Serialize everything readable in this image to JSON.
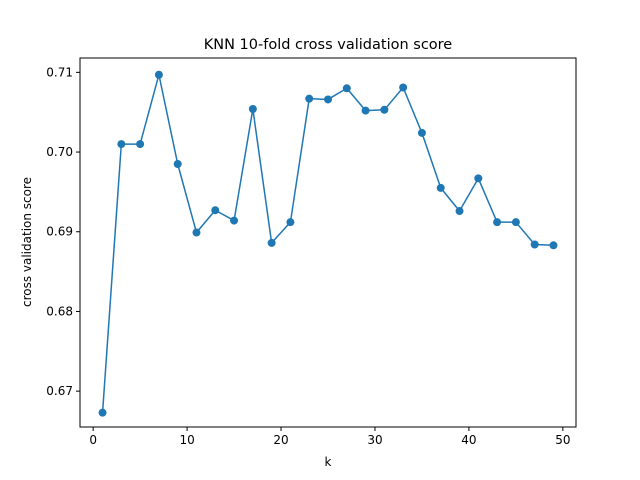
{
  "chart_data": {
    "type": "line",
    "title": "KNN 10-fold cross validation score",
    "xlabel": "k",
    "ylabel": "cross validation score",
    "xlim": [
      -1.4,
      51.4
    ],
    "ylim": [
      0.6655,
      0.7118
    ],
    "xticks": [
      0,
      10,
      20,
      30,
      40,
      50
    ],
    "yticks": [
      0.67,
      0.68,
      0.69,
      0.7,
      0.71
    ],
    "xtick_labels": [
      "0",
      "10",
      "20",
      "30",
      "40",
      "50"
    ],
    "ytick_labels": [
      "0.67",
      "0.68",
      "0.69",
      "0.70",
      "0.71"
    ],
    "grid": false,
    "legend": null,
    "series": [
      {
        "color": "#1f77b4",
        "marker": "circle",
        "x": [
          1,
          3,
          5,
          7,
          9,
          11,
          13,
          15,
          17,
          19,
          21,
          23,
          25,
          27,
          29,
          31,
          33,
          35,
          37,
          39,
          41,
          43,
          45,
          47,
          49
        ],
        "y": [
          0.6673,
          0.701,
          0.701,
          0.7097,
          0.6985,
          0.6899,
          0.6927,
          0.6914,
          0.7054,
          0.6886,
          0.6912,
          0.7067,
          0.7066,
          0.708,
          0.7052,
          0.7053,
          0.7081,
          0.7024,
          0.6955,
          0.6926,
          0.6967,
          0.6912,
          0.6912,
          0.6884,
          0.6883
        ]
      }
    ]
  }
}
